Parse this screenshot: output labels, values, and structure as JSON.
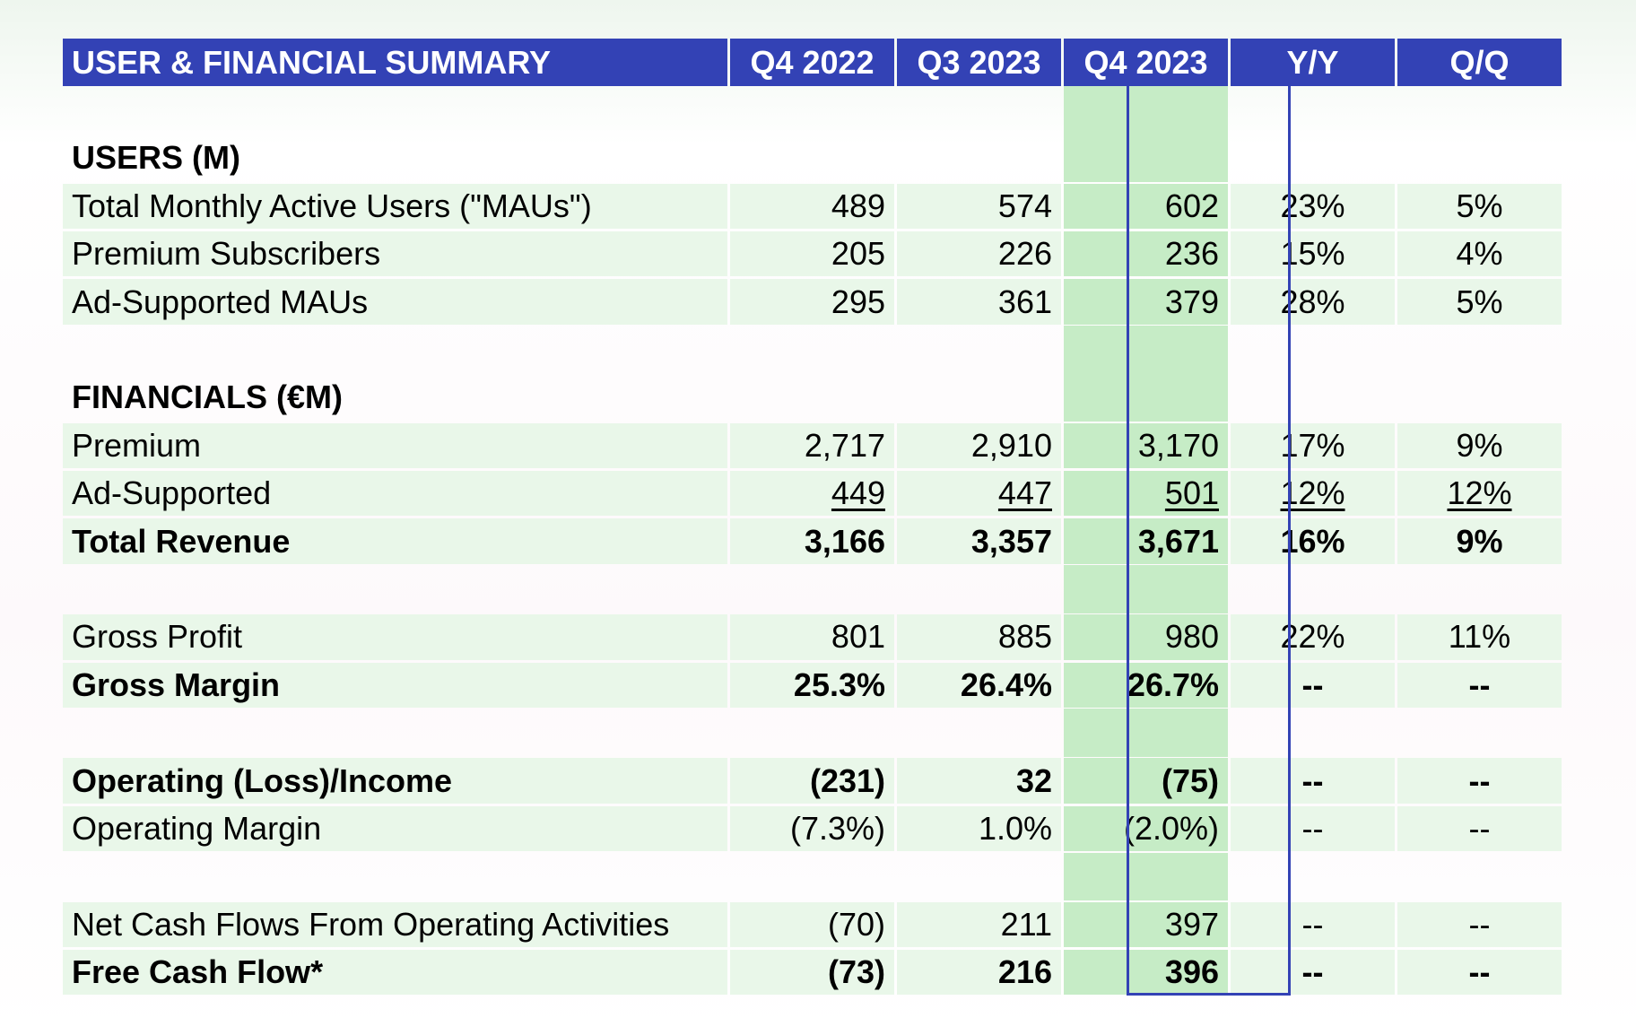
{
  "header": {
    "title": "USER & FINANCIAL SUMMARY",
    "columns": [
      "Q4 2022",
      "Q3 2023",
      "Q4 2023",
      "Y/Y",
      "Q/Q"
    ]
  },
  "users_section": {
    "title": "USERS (M)",
    "rows": [
      {
        "label": "Total Monthly Active Users (\"MAUs\")",
        "q4_2022": "489",
        "q3_2023": "574",
        "q4_2023": "602",
        "yy": "23%",
        "qq": "5%"
      },
      {
        "label": "Premium Subscribers",
        "q4_2022": "205",
        "q3_2023": "226",
        "q4_2023": "236",
        "yy": "15%",
        "qq": "4%"
      },
      {
        "label": "Ad-Supported MAUs",
        "q4_2022": "295",
        "q3_2023": "361",
        "q4_2023": "379",
        "yy": "28%",
        "qq": "5%"
      }
    ]
  },
  "financials_section": {
    "title": "FINANCIALS (€M)",
    "premium": {
      "label": "Premium",
      "q4_2022": "2,717",
      "q3_2023": "2,910",
      "q4_2023": "3,170",
      "yy": "17%",
      "qq": "9%"
    },
    "ad_supported": {
      "label": "Ad-Supported",
      "q4_2022": "449",
      "q3_2023": "447",
      "q4_2023": "501",
      "yy": "12%",
      "qq": "12%"
    },
    "total_revenue": {
      "label": "Total Revenue",
      "q4_2022": "3,166",
      "q3_2023": "3,357",
      "q4_2023": "3,671",
      "yy": "16%",
      "qq": "9%"
    },
    "gross_profit": {
      "label": "Gross Profit",
      "q4_2022": "801",
      "q3_2023": "885",
      "q4_2023": "980",
      "yy": "22%",
      "qq": "11%"
    },
    "gross_margin": {
      "label": "Gross Margin",
      "q4_2022": "25.3%",
      "q3_2023": "26.4%",
      "q4_2023": "26.7%",
      "yy": "--",
      "qq": "--"
    },
    "operating_income": {
      "label": "Operating (Loss)/Income",
      "q4_2022": "(231)",
      "q3_2023": "32",
      "q4_2023": "(75)",
      "yy": "--",
      "qq": "--"
    },
    "operating_margin": {
      "label": "Operating Margin",
      "q4_2022": "(7.3%)",
      "q3_2023": "1.0%",
      "q4_2023": "(2.0%)",
      "yy": "--",
      "qq": "--"
    },
    "net_cash_flows": {
      "label": "Net Cash Flows From Operating Activities",
      "q4_2022": "(70)",
      "q3_2023": "211",
      "q4_2023": "397",
      "yy": "--",
      "qq": "--"
    },
    "free_cash_flow": {
      "label": "Free Cash Flow*",
      "q4_2022": "(73)",
      "q3_2023": "216",
      "q4_2023": "396",
      "yy": "--",
      "qq": "--"
    }
  },
  "colors": {
    "header_bg": "#3342b5",
    "row_bg": "#e9f7e9",
    "highlight_bg": "#c6ecc6"
  }
}
